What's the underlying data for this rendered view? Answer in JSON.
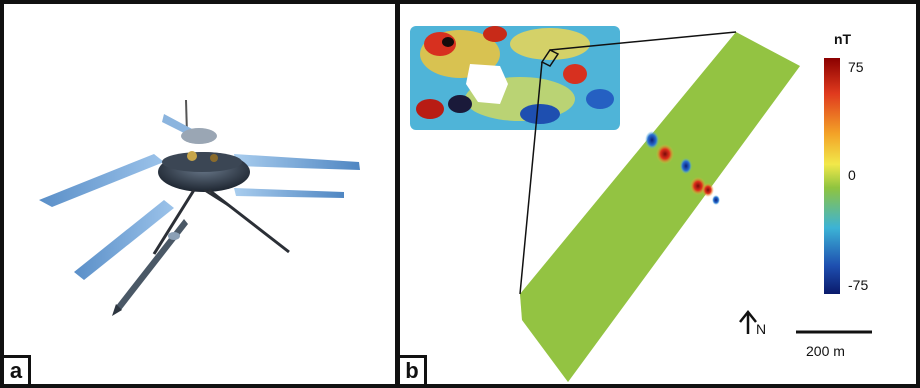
{
  "panel_a": {
    "label": "a",
    "subject": "drone-magnetometer-photo"
  },
  "panel_b": {
    "label": "b",
    "colorbar": {
      "unit": "nT",
      "max_label": "75",
      "mid_label": "0",
      "min_label": "-75",
      "colors": [
        "#8b0000",
        "#e03a1e",
        "#f3a227",
        "#f2e84a",
        "#8fc43f",
        "#3cb3d6",
        "#1e4fb0",
        "#0a1a6b"
      ]
    },
    "north_arrow": {
      "letter": "N"
    },
    "scale_bar": {
      "text": "200 m"
    },
    "map_base_color": "#8dc044"
  }
}
